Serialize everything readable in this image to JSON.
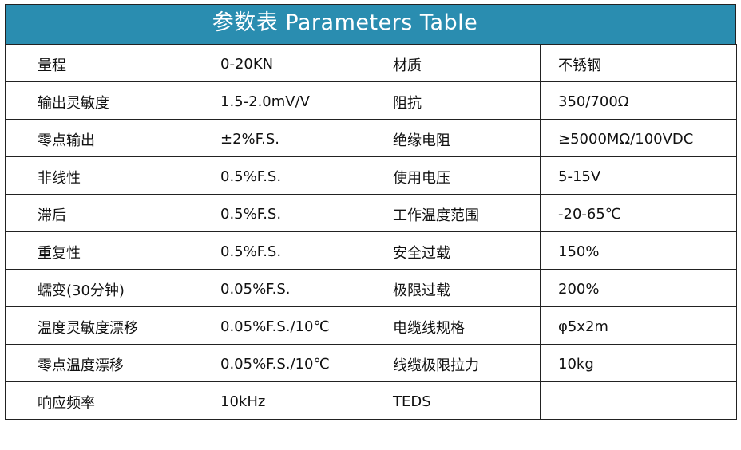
{
  "header": {
    "title": "参数表  Parameters Table"
  },
  "table": {
    "rows": [
      [
        "量程",
        "0-20KN",
        "材质",
        "不锈钢"
      ],
      [
        "输出灵敏度",
        "1.5-2.0mV/V",
        "阻抗",
        "350/700Ω"
      ],
      [
        "零点输出",
        "±2%F.S.",
        "绝缘电阻",
        "≥5000MΩ/100VDC"
      ],
      [
        "非线性",
        "0.5%F.S.",
        "使用电压",
        "5-15V"
      ],
      [
        "滞后",
        "0.5%F.S.",
        "工作温度范围",
        "-20-65℃"
      ],
      [
        "重复性",
        "0.5%F.S.",
        "安全过载",
        "150%"
      ],
      [
        "蠕变(30分钟)",
        "0.05%F.S.",
        "极限过载",
        "200%"
      ],
      [
        "温度灵敏度漂移",
        "0.05%F.S./10℃",
        "电缆线规格",
        "φ5x2m"
      ],
      [
        "零点温度漂移",
        "0.05%F.S./10℃",
        "线缆极限拉力",
        "10kg"
      ],
      [
        "响应频率",
        "10kHz",
        "TEDS"
      ]
    ]
  }
}
